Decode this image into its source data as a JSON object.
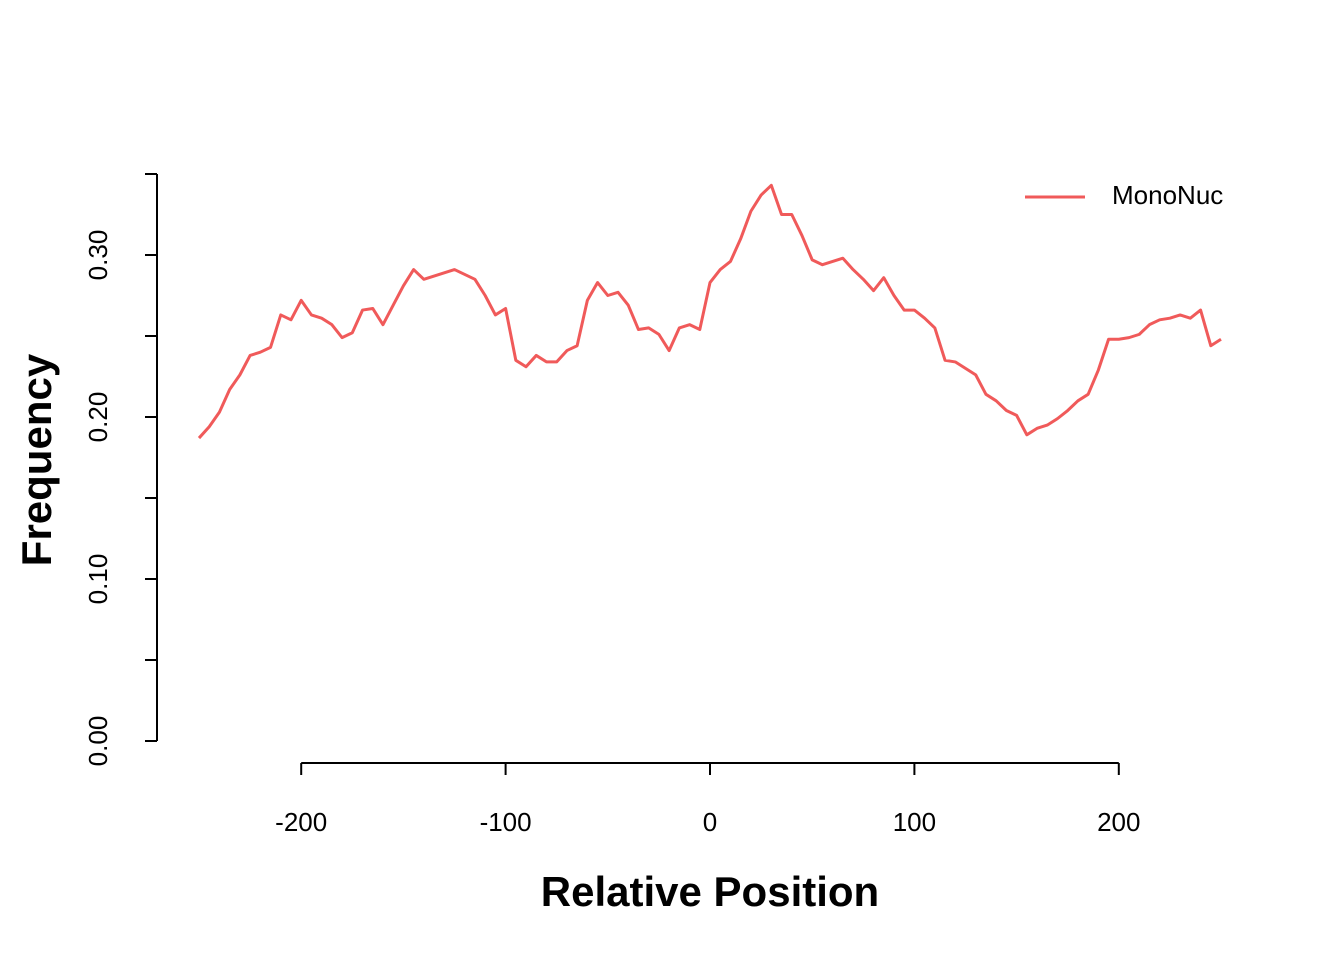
{
  "chart_data": {
    "type": "line",
    "xlabel": "Relative Position",
    "ylabel": "Frequency",
    "x": [
      -250,
      -245,
      -240,
      -235,
      -230,
      -225,
      -220,
      -215,
      -210,
      -205,
      -200,
      -195,
      -190,
      -185,
      -180,
      -175,
      -170,
      -165,
      -160,
      -155,
      -150,
      -145,
      -140,
      -135,
      -130,
      -125,
      -120,
      -115,
      -110,
      -105,
      -100,
      -95,
      -90,
      -85,
      -80,
      -75,
      -70,
      -65,
      -60,
      -55,
      -50,
      -45,
      -40,
      -35,
      -30,
      -25,
      -20,
      -15,
      -10,
      -5,
      0,
      5,
      10,
      15,
      20,
      25,
      30,
      35,
      40,
      45,
      50,
      55,
      60,
      65,
      70,
      75,
      80,
      85,
      90,
      95,
      100,
      105,
      110,
      115,
      120,
      125,
      130,
      135,
      140,
      145,
      150,
      155,
      160,
      165,
      170,
      175,
      180,
      185,
      190,
      195,
      200,
      205,
      210,
      215,
      220,
      225,
      230,
      235,
      240,
      245,
      250
    ],
    "series": [
      {
        "name": "MonoNuc",
        "color": "#F05A5A",
        "values": [
          0.187,
          0.194,
          0.203,
          0.217,
          0.226,
          0.238,
          0.24,
          0.243,
          0.263,
          0.26,
          0.272,
          0.263,
          0.261,
          0.257,
          0.249,
          0.252,
          0.266,
          0.267,
          0.257,
          0.269,
          0.281,
          0.291,
          0.285,
          0.287,
          0.289,
          0.291,
          0.288,
          0.285,
          0.275,
          0.263,
          0.267,
          0.235,
          0.231,
          0.238,
          0.234,
          0.234,
          0.241,
          0.244,
          0.272,
          0.283,
          0.275,
          0.277,
          0.269,
          0.254,
          0.255,
          0.251,
          0.241,
          0.255,
          0.257,
          0.254,
          0.283,
          0.291,
          0.296,
          0.31,
          0.327,
          0.337,
          0.343,
          0.325,
          0.325,
          0.312,
          0.297,
          0.294,
          0.296,
          0.298,
          0.291,
          0.285,
          0.278,
          0.286,
          0.275,
          0.266,
          0.266,
          0.261,
          0.255,
          0.235,
          0.234,
          0.23,
          0.226,
          0.214,
          0.21,
          0.204,
          0.201,
          0.189,
          0.193,
          0.195,
          0.199,
          0.204,
          0.21,
          0.214,
          0.229,
          0.248,
          0.248,
          0.249,
          0.251,
          0.257,
          0.26,
          0.261,
          0.263,
          0.261,
          0.266,
          0.244,
          0.248
        ]
      }
    ],
    "xlim": [
      -250,
      250
    ],
    "xticks": [
      -200,
      -100,
      0,
      100,
      200
    ],
    "ylim": [
      0,
      0.35
    ],
    "yticks": [
      {
        "value": 0,
        "label": "0.00"
      },
      {
        "value": 0.1,
        "label": "0.10"
      },
      {
        "value": 0.2,
        "label": "0.20"
      },
      {
        "value": 0.3,
        "label": "0.30"
      }
    ],
    "yminor_ticks": [
      0.05,
      0.15,
      0.25,
      0.35
    ],
    "legend": "top-right"
  }
}
